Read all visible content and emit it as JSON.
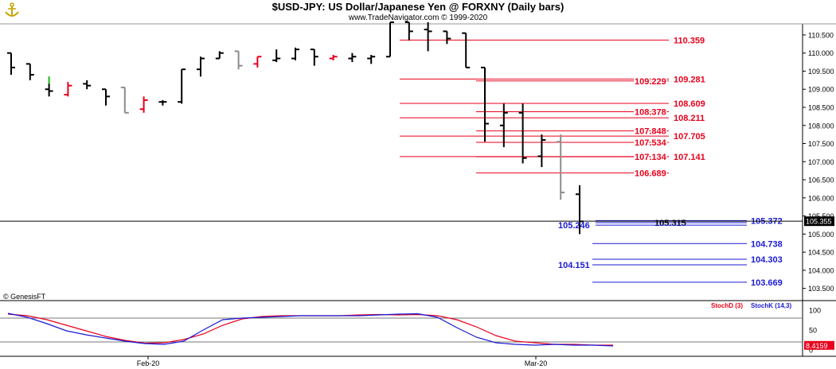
{
  "header": {
    "title": "$USD-JPY:  US Dollar/Japanese Yen @ FORXNY  (Daily bars)",
    "subtitle": "www.TradeNavigator.com © 1999-2020"
  },
  "watermark": "© GenesisFT",
  "colors": {
    "up": "#000000",
    "down": "#e8001c",
    "gray": "#8c8c8c",
    "green": "#22cc22",
    "support": "#1a1ad6"
  },
  "chart_data": [
    {
      "type": "ohlc",
      "ylim": [
        103.25,
        110.85
      ],
      "y_ticks": [
        "110.500",
        "110.000",
        "109.500",
        "109.000",
        "108.500",
        "108.000",
        "107.500",
        "107.000",
        "106.500",
        "106.000",
        "105.500",
        "105.000",
        "104.500",
        "104.000",
        "103.500"
      ],
      "x_ticks": [
        "Feb-20",
        "Mar-20"
      ],
      "last_price": "105.355",
      "bars": [
        {
          "o": 110.0,
          "h": 110.0,
          "l": 109.4,
          "c": 109.6,
          "color": "up"
        },
        {
          "o": 109.7,
          "h": 109.7,
          "l": 109.25,
          "c": 109.4,
          "color": "up"
        },
        {
          "o": 109.0,
          "h": 109.35,
          "l": 108.8,
          "c": 108.95,
          "color": "up",
          "hl": "green"
        },
        {
          "o": 108.85,
          "h": 109.2,
          "l": 108.8,
          "c": 109.1,
          "color": "down"
        },
        {
          "o": 109.15,
          "h": 109.25,
          "l": 109.0,
          "c": 109.1,
          "color": "up"
        },
        {
          "o": 109.0,
          "h": 109.0,
          "l": 108.55,
          "c": 108.8,
          "color": "up"
        },
        {
          "o": 109.05,
          "h": 109.05,
          "l": 108.35,
          "c": 108.35,
          "color": "gray"
        },
        {
          "o": 108.45,
          "h": 108.8,
          "l": 108.35,
          "c": 108.7,
          "color": "down"
        },
        {
          "o": 108.65,
          "h": 108.7,
          "l": 108.55,
          "c": 108.65,
          "color": "up"
        },
        {
          "o": 108.65,
          "h": 109.55,
          "l": 108.6,
          "c": 109.55,
          "color": "up"
        },
        {
          "o": 109.55,
          "h": 109.9,
          "l": 109.35,
          "c": 109.85,
          "color": "up"
        },
        {
          "o": 109.85,
          "h": 110.05,
          "l": 109.85,
          "c": 110.0,
          "color": "up"
        },
        {
          "o": 110.05,
          "h": 110.05,
          "l": 109.55,
          "c": 109.65,
          "color": "gray"
        },
        {
          "o": 109.7,
          "h": 109.9,
          "l": 109.6,
          "c": 109.9,
          "color": "down"
        },
        {
          "o": 109.8,
          "h": 110.1,
          "l": 109.75,
          "c": 109.85,
          "color": "up"
        },
        {
          "o": 109.85,
          "h": 110.15,
          "l": 109.8,
          "c": 110.1,
          "color": "up"
        },
        {
          "o": 110.1,
          "h": 110.1,
          "l": 109.65,
          "c": 109.9,
          "color": "up"
        },
        {
          "o": 109.85,
          "h": 109.95,
          "l": 109.8,
          "c": 109.9,
          "color": "down"
        },
        {
          "o": 109.85,
          "h": 110.0,
          "l": 109.75,
          "c": 109.9,
          "color": "up"
        },
        {
          "o": 109.85,
          "h": 109.95,
          "l": 109.7,
          "c": 109.9,
          "color": "up"
        },
        {
          "o": 109.9,
          "h": 110.85,
          "l": 109.9,
          "c": 110.85,
          "color": "up"
        },
        {
          "o": 110.85,
          "h": 110.85,
          "l": 110.35,
          "c": 110.6,
          "color": "up"
        },
        {
          "o": 110.65,
          "h": 110.85,
          "l": 110.05,
          "c": 110.6,
          "color": "up"
        },
        {
          "o": 110.6,
          "h": 110.6,
          "l": 110.25,
          "c": 110.4,
          "color": "up"
        },
        {
          "o": 110.55,
          "h": 110.55,
          "l": 109.6,
          "c": 109.6,
          "color": "up"
        },
        {
          "o": 109.6,
          "h": 109.6,
          "l": 107.55,
          "c": 108.05,
          "color": "up"
        },
        {
          "o": 108.0,
          "h": 108.6,
          "l": 107.4,
          "c": 108.35,
          "color": "up"
        },
        {
          "o": 108.35,
          "h": 108.6,
          "l": 106.95,
          "c": 107.1,
          "color": "up"
        },
        {
          "o": 107.15,
          "h": 107.75,
          "l": 106.85,
          "c": 107.6,
          "color": "up"
        },
        {
          "o": 107.55,
          "h": 107.75,
          "l": 105.95,
          "c": 106.15,
          "color": "gray"
        },
        {
          "o": 106.1,
          "h": 106.35,
          "l": 105.0,
          "c": 105.35,
          "color": "up"
        }
      ],
      "resistance": [
        {
          "price": 110.359,
          "label": "110.359"
        },
        {
          "price": 109.281,
          "label": "109.281"
        },
        {
          "price": 109.229,
          "label": "109.229"
        },
        {
          "price": 108.609,
          "label": "108.609"
        },
        {
          "price": 108.378,
          "label": "108.378"
        },
        {
          "price": 108.211,
          "label": "108.211"
        },
        {
          "price": 107.848,
          "label": "107.848"
        },
        {
          "price": 107.705,
          "label": "107.705"
        },
        {
          "price": 107.534,
          "label": "107.534"
        },
        {
          "price": 107.141,
          "label": "107.141"
        },
        {
          "price": 107.134,
          "label": "107.134"
        },
        {
          "price": 106.689,
          "label": "106.689"
        }
      ],
      "support": [
        {
          "price": 105.372,
          "label": "105.372"
        },
        {
          "price": 105.315,
          "label": "105.315"
        },
        {
          "price": 105.246,
          "label": "105.246"
        },
        {
          "price": 104.738,
          "label": "104.738"
        },
        {
          "price": 104.303,
          "label": "104.303"
        },
        {
          "price": 104.151,
          "label": "104.151"
        },
        {
          "price": 103.669,
          "label": "103.669"
        }
      ]
    },
    {
      "type": "line",
      "ylim": [
        0,
        100
      ],
      "y_ticks": [
        "100",
        "50",
        "0"
      ],
      "last_value": "8.4159",
      "series": [
        {
          "name": "StochD (3)",
          "color": "#e8001c",
          "values": [
            90,
            86,
            76,
            62,
            48,
            34,
            24,
            17,
            18,
            26,
            40,
            62,
            78,
            84,
            86,
            86,
            86,
            86,
            88,
            89,
            88,
            89,
            86,
            76,
            58,
            36,
            22,
            18,
            14,
            14,
            12,
            12
          ]
        },
        {
          "name": "StochK (14,3)",
          "color": "#1a1ad6",
          "values": [
            92,
            82,
            66,
            48,
            38,
            30,
            22,
            16,
            14,
            22,
            50,
            76,
            80,
            82,
            84,
            86,
            86,
            86,
            86,
            88,
            90,
            91,
            82,
            56,
            32,
            18,
            14,
            12,
            14,
            12,
            12,
            10
          ]
        }
      ]
    }
  ]
}
